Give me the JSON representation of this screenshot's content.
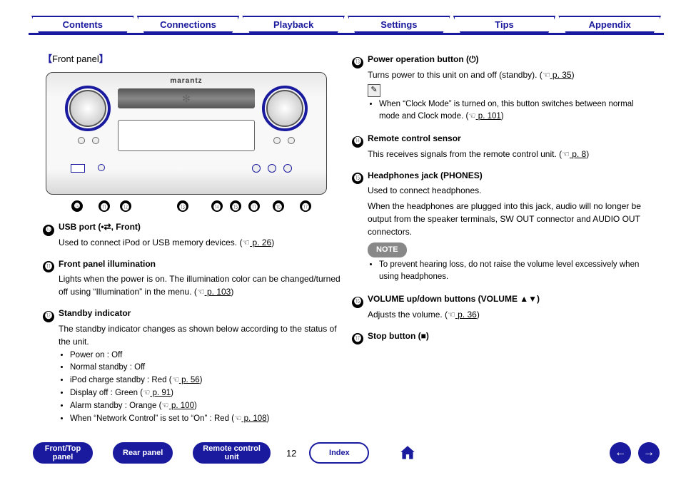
{
  "colors": {
    "accent": "#1a1a9e",
    "note_bg": "#888888",
    "page_bg": "#ffffff"
  },
  "top_tabs": [
    "Contents",
    "Connections",
    "Playback",
    "Settings",
    "Tips",
    "Appendix"
  ],
  "section_title": "Front panel",
  "brand": "marantz",
  "callout_numbers": [
    "❿",
    "⓫",
    "⓬",
    "⓭",
    "⓮",
    "⓯",
    "⓫",
    "⓰",
    "⓱"
  ],
  "left_items": [
    {
      "num": "❿",
      "title": "USB port (•⇄, Front)",
      "body": "Used to connect iPod or USB memory devices.  (",
      "link": " p. 26",
      "tail": ")"
    },
    {
      "num": "⓫",
      "title": "Front panel illumination",
      "body": "Lights when the power is on. The illumination color can be changed/turned off using “Illumination” in the menu.  (",
      "link": " p. 103",
      "tail": ")"
    },
    {
      "num": "⓬",
      "title": "Standby indicator",
      "body": "The standby indicator changes as shown below according to the status of the unit.",
      "bullets": [
        {
          "text": "Power on : Off"
        },
        {
          "text": "Normal standby : Off"
        },
        {
          "text": "iPod charge standby : Red  (",
          "link": " p. 56",
          "tail": ")"
        },
        {
          "text": "Display off : Green  (",
          "link": " p. 91",
          "tail": ")"
        },
        {
          "text": "Alarm standby : Orange  (",
          "link": " p. 100",
          "tail": ")"
        },
        {
          "text": "When “Network Control” is set to “On” : Red  (",
          "link": " p. 108",
          "tail": ")"
        }
      ]
    }
  ],
  "right_items": [
    {
      "num": "⓭",
      "title": "Power operation button (⏻)",
      "body": "Turns power to this unit on and off (standby).  (",
      "link": " p. 35",
      "tail": ")",
      "wrench": true,
      "sub_bullets": [
        {
          "text": "When “Clock Mode” is turned on, this button switches between normal mode and Clock mode.  (",
          "link": " p. 101",
          "tail": ")"
        }
      ]
    },
    {
      "num": "⓮",
      "title": "Remote control sensor",
      "body": "This receives signals from the remote control unit.  (",
      "link": " p. 8",
      "tail": ")"
    },
    {
      "num": "⓯",
      "title": "Headphones jack (PHONES)",
      "body": "Used to connect headphones.",
      "extra": "When the headphones are plugged into this jack, audio will no longer be output from the speaker terminals, SW OUT connector and AUDIO OUT connectors.",
      "note_label": "NOTE",
      "note_bullets": [
        {
          "text": "To prevent hearing loss, do not raise the volume level excessively when using headphones."
        }
      ]
    },
    {
      "num": "⓰",
      "title": "VOLUME up/down buttons (VOLUME ▲▼)",
      "body": "Adjusts the volume.  (",
      "link": " p. 36",
      "tail": ")"
    },
    {
      "num": "⓱",
      "title": "Stop button (■)"
    }
  ],
  "bottom": {
    "pills": [
      "Front/Top\npanel",
      "Rear panel",
      "Remote control\nunit"
    ],
    "page": "12",
    "index": "Index"
  }
}
